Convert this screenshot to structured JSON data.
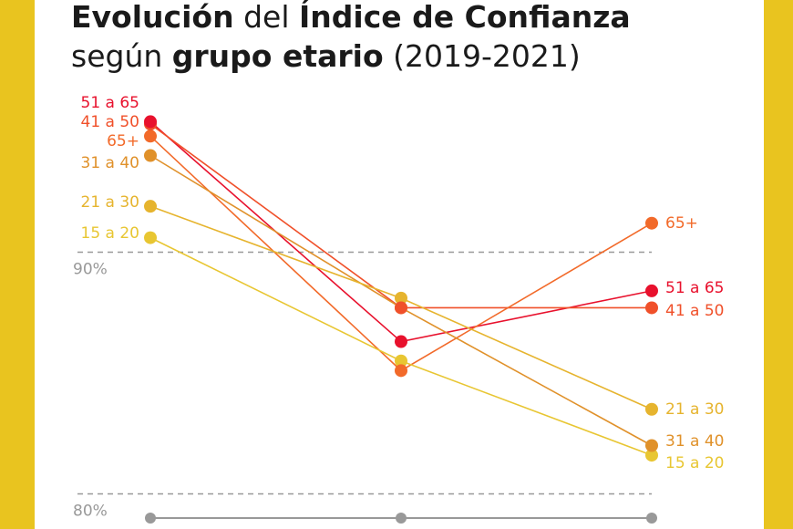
{
  "chart_data": {
    "type": "line",
    "title_parts": [
      "Evolución",
      " del ",
      "Índice de Confianza",
      "según ",
      "grupo etario",
      " (2019-2021)"
    ],
    "categories": [
      null,
      null,
      null
    ],
    "ylim": [
      79,
      100
    ],
    "yticks": [
      {
        "value": 80,
        "label": "80%"
      },
      {
        "value": 90,
        "label": "90%"
      }
    ],
    "grid": true,
    "series": [
      {
        "name": "51 a 65",
        "color": "#e8112d",
        "values": [
          95.4,
          86.3,
          88.4
        ]
      },
      {
        "name": "41 a 50",
        "color": "#f0502a",
        "values": [
          95.3,
          87.7,
          87.7
        ]
      },
      {
        "name": "65+",
        "color": "#f26a2a",
        "values": [
          94.8,
          85.1,
          91.2
        ]
      },
      {
        "name": "31 a 40",
        "color": "#e0912a",
        "values": [
          94.0,
          87.7,
          82.0
        ]
      },
      {
        "name": "21 a 30",
        "color": "#e6b42e",
        "values": [
          91.9,
          88.1,
          83.5
        ]
      },
      {
        "name": "15 a 20",
        "color": "#e8c632",
        "values": [
          90.6,
          85.5,
          81.6
        ]
      }
    ]
  }
}
